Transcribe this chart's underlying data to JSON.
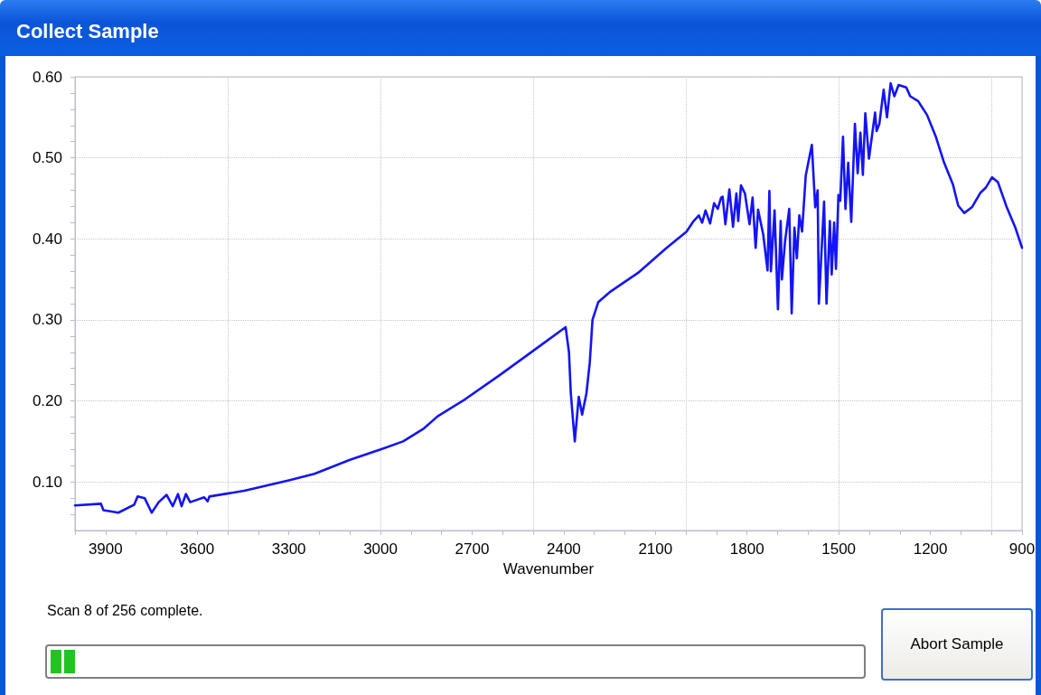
{
  "chart_data": {
    "type": "line",
    "title": "Collect Sample",
    "xlabel": "Wavenumber",
    "annotations": [
      "Scan 8 of 256 complete.",
      "Abort Sample"
    ],
    "xlim": [
      4000,
      900
    ],
    "ylim": [
      0.04,
      0.6
    ],
    "xticks": [
      {
        "value": 4000,
        "label": null
      },
      3900,
      {
        "value": 3800,
        "label": null
      },
      {
        "value": 3700,
        "label": null
      },
      3600,
      {
        "value": 3500,
        "label": null
      },
      {
        "value": 3400,
        "label": null
      },
      3300,
      {
        "value": 3200,
        "label": null
      },
      {
        "value": 3100,
        "label": null
      },
      3000,
      {
        "value": 2900,
        "label": null
      },
      {
        "value": 2800,
        "label": null
      },
      2700,
      {
        "value": 2600,
        "label": null
      },
      {
        "value": 2500,
        "label": null
      },
      2400,
      {
        "value": 2300,
        "label": null
      },
      {
        "value": 2200,
        "label": null
      },
      2100,
      {
        "value": 2000,
        "label": null
      },
      {
        "value": 1900,
        "label": null
      },
      1800,
      {
        "value": 1700,
        "label": null
      },
      {
        "value": 1600,
        "label": null
      },
      1500,
      {
        "value": 1400,
        "label": null
      },
      {
        "value": 1300,
        "label": null
      },
      1200,
      {
        "value": 1100,
        "label": null
      },
      {
        "value": 1000,
        "label": null
      },
      900
    ],
    "yticks": [
      {
        "value": 0.06,
        "label": null
      },
      {
        "value": 0.08,
        "label": null
      },
      {
        "value": 0.1,
        "label": "0.10"
      },
      {
        "value": 0.12,
        "label": null
      },
      {
        "value": 0.14,
        "label": null
      },
      {
        "value": 0.16,
        "label": null
      },
      {
        "value": 0.18,
        "label": null
      },
      {
        "value": 0.2,
        "label": "0.20"
      },
      {
        "value": 0.22,
        "label": null
      },
      {
        "value": 0.24,
        "label": null
      },
      {
        "value": 0.26,
        "label": null
      },
      {
        "value": 0.28,
        "label": null
      },
      {
        "value": 0.3,
        "label": "0.30"
      },
      {
        "value": 0.32,
        "label": null
      },
      {
        "value": 0.34,
        "label": null
      },
      {
        "value": 0.36,
        "label": null
      },
      {
        "value": 0.38,
        "label": null
      },
      {
        "value": 0.4,
        "label": "0.40"
      },
      {
        "value": 0.42,
        "label": null
      },
      {
        "value": 0.44,
        "label": null
      },
      {
        "value": 0.46,
        "label": null
      },
      {
        "value": 0.48,
        "label": null
      },
      {
        "value": 0.5,
        "label": "0.50"
      },
      {
        "value": 0.52,
        "label": null
      },
      {
        "value": 0.54,
        "label": null
      },
      {
        "value": 0.56,
        "label": null
      },
      {
        "value": 0.58,
        "label": null
      },
      {
        "value": 0.6,
        "label": "0.60"
      }
    ],
    "grid": true,
    "marker": "none",
    "line_style": "solid",
    "series": [
      {
        "color": "#1414f5",
        "x": [
          4000,
          3915,
          3907,
          3858,
          3806,
          3795,
          3772,
          3749,
          3726,
          3700,
          3680,
          3663,
          3651,
          3637,
          3623,
          3577,
          3566,
          3560,
          3446,
          3300,
          3216,
          3102,
          2993,
          2926,
          2858,
          2813,
          2723,
          2609,
          2496,
          2394,
          2383,
          2377,
          2364,
          2351,
          2340,
          2326,
          2315,
          2306,
          2287,
          2247,
          2157,
          2066,
          1998,
          1975,
          1958,
          1947,
          1936,
          1921,
          1908,
          1896,
          1885,
          1880,
          1871,
          1858,
          1846,
          1835,
          1829,
          1820,
          1807,
          1792,
          1782,
          1772,
          1764,
          1747,
          1733,
          1727,
          1722,
          1710,
          1699,
          1690,
          1686,
          1676,
          1662,
          1654,
          1645,
          1637,
          1629,
          1620,
          1608,
          1588,
          1577,
          1569,
          1565,
          1548,
          1540,
          1529,
          1523,
          1515,
          1509,
          1501,
          1495,
          1486,
          1478,
          1469,
          1459,
          1447,
          1438,
          1429,
          1421,
          1413,
          1401,
          1381,
          1376,
          1367,
          1353,
          1342,
          1330,
          1318,
          1304,
          1279,
          1266,
          1240,
          1211,
          1183,
          1155,
          1126,
          1109,
          1089,
          1064,
          1036,
          1019,
          998,
          979,
          950,
          922,
          900
        ],
        "values": [
          0.071,
          0.073,
          0.065,
          0.062,
          0.072,
          0.082,
          0.08,
          0.062,
          0.075,
          0.084,
          0.07,
          0.085,
          0.07,
          0.085,
          0.075,
          0.081,
          0.076,
          0.082,
          0.089,
          0.102,
          0.11,
          0.127,
          0.141,
          0.15,
          0.166,
          0.181,
          0.202,
          0.232,
          0.263,
          0.291,
          0.26,
          0.209,
          0.15,
          0.205,
          0.183,
          0.209,
          0.247,
          0.3,
          0.322,
          0.335,
          0.358,
          0.388,
          0.409,
          0.422,
          0.429,
          0.42,
          0.435,
          0.419,
          0.444,
          0.437,
          0.451,
          0.452,
          0.418,
          0.461,
          0.415,
          0.456,
          0.422,
          0.466,
          0.456,
          0.418,
          0.451,
          0.389,
          0.436,
          0.405,
          0.361,
          0.459,
          0.36,
          0.435,
          0.313,
          0.422,
          0.35,
          0.396,
          0.437,
          0.308,
          0.414,
          0.376,
          0.429,
          0.409,
          0.478,
          0.516,
          0.439,
          0.46,
          0.32,
          0.446,
          0.32,
          0.422,
          0.356,
          0.42,
          0.363,
          0.454,
          0.447,
          0.526,
          0.437,
          0.494,
          0.421,
          0.542,
          0.481,
          0.531,
          0.479,
          0.555,
          0.499,
          0.556,
          0.533,
          0.542,
          0.584,
          0.55,
          0.592,
          0.576,
          0.59,
          0.587,
          0.576,
          0.57,
          0.553,
          0.527,
          0.494,
          0.467,
          0.441,
          0.432,
          0.439,
          0.457,
          0.463,
          0.476,
          0.47,
          0.439,
          0.414,
          0.389
        ]
      }
    ]
  }
}
